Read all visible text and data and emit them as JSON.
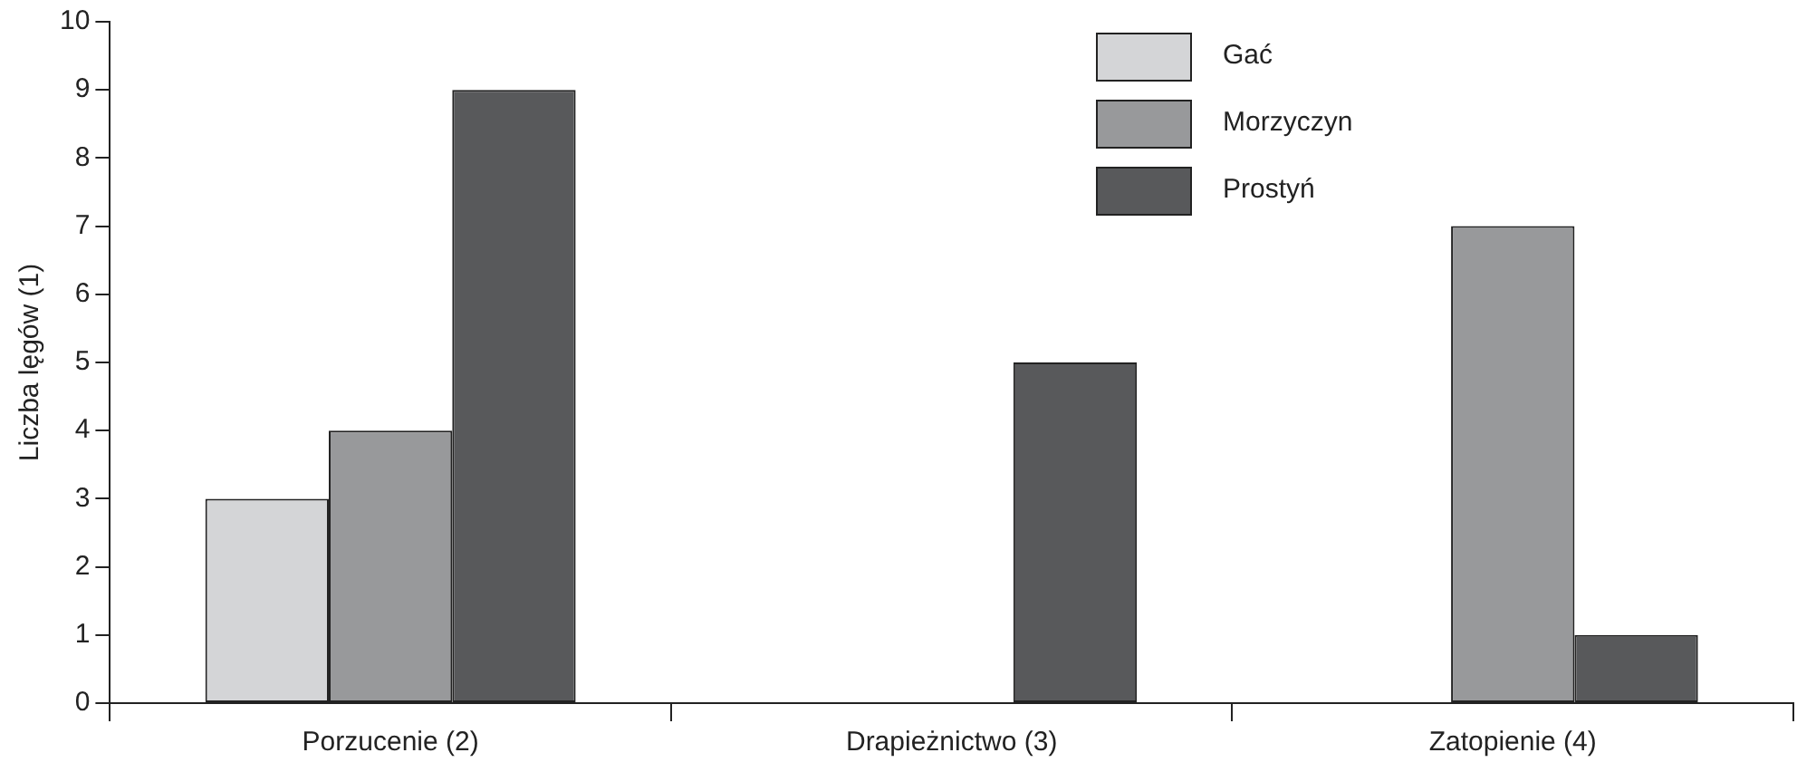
{
  "chart_data": {
    "type": "bar",
    "ylabel": "Liczba lęgów (1)",
    "categories": [
      "Porzucenie (2)",
      "Drapieżnictwo (3)",
      "Zatopienie (4)"
    ],
    "series": [
      {
        "name": "Gać",
        "color": "#d4d5d7",
        "values": [
          3,
          0,
          0
        ]
      },
      {
        "name": "Morzyczyn",
        "color": "#98999b",
        "values": [
          4,
          0,
          7
        ]
      },
      {
        "name": "Prostyń",
        "color": "#58595b",
        "values": [
          9,
          5,
          1
        ]
      }
    ],
    "ylim": [
      0,
      10
    ],
    "yticks": [
      0,
      1,
      2,
      3,
      4,
      5,
      6,
      7,
      8,
      9,
      10
    ],
    "grid": false,
    "legend": "top right"
  }
}
